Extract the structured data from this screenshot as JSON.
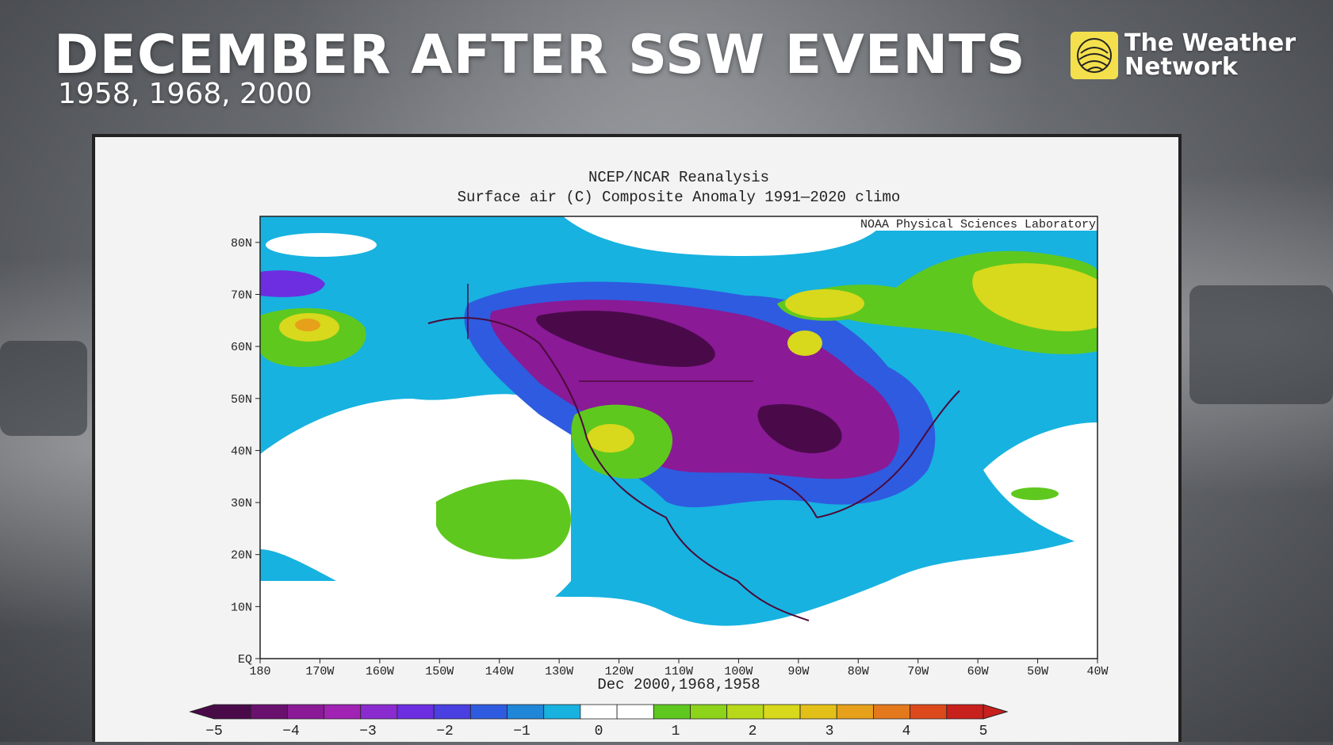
{
  "headline": "DECEMBER AFTER SSW EVENTS",
  "subheadline": "1958, 1968, 2000",
  "logo": {
    "line1": "The Weather",
    "line2": "Network"
  },
  "map": {
    "title_line1": "NCEP/NCAR Reanalysis",
    "title_line2": "Surface air (C) Composite Anomaly 1991—2020 climo",
    "credit": "NOAA Physical Sciences Laboratory",
    "xlabel": "Dec 2000,1968,1958",
    "lat_ticks": [
      "80N",
      "70N",
      "60N",
      "50N",
      "40N",
      "30N",
      "20N",
      "10N",
      "EQ"
    ],
    "lon_ticks": [
      "180",
      "170W",
      "160W",
      "150W",
      "140W",
      "130W",
      "120W",
      "110W",
      "100W",
      "90W",
      "80W",
      "70W",
      "60W",
      "50W",
      "40W"
    ],
    "lat_range": [
      0,
      85
    ],
    "lon_range": [
      -180,
      -40
    ]
  },
  "colorbar": {
    "labels": [
      "−5",
      "−4",
      "−3",
      "−2",
      "−1",
      "0",
      "1",
      "2",
      "3",
      "4",
      "5"
    ],
    "range": [
      -5,
      5
    ],
    "colors": [
      "#4a0a4a",
      "#6a106e",
      "#8a1a96",
      "#a023b4",
      "#8a2bd0",
      "#6c2ee0",
      "#4a3fe0",
      "#2f5be0",
      "#1f86d8",
      "#17b2e0",
      "#ffffff",
      "#ffffff",
      "#5fc81e",
      "#8cd31a",
      "#b8d81a",
      "#d8d81c",
      "#e2c018",
      "#e6a01a",
      "#e4781c",
      "#dc4a1c",
      "#c8201c"
    ]
  },
  "colors": {
    "cold_core": "#4a0a4a",
    "cold_purple": "#8a1a96",
    "cold_blue": "#2f5be0",
    "cyan": "#17b2e0",
    "green": "#5fc81e",
    "yellow": "#d8d81c",
    "orange": "#e6a01a"
  }
}
